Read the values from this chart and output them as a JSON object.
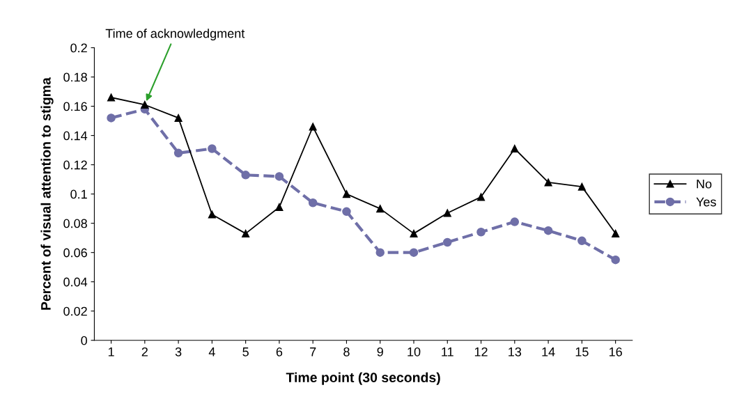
{
  "chart_data": {
    "type": "line",
    "xlabel": "Time point (30 seconds)",
    "ylabel": "Percent of visual attention to stigma",
    "categories": [
      "1",
      "2",
      "3",
      "4",
      "5",
      "6",
      "7",
      "8",
      "9",
      "10",
      "11",
      "12",
      "13",
      "14",
      "15",
      "16"
    ],
    "series": [
      {
        "name": "No",
        "color": "#000000",
        "marker": "triangle",
        "line_style": "solid",
        "values": [
          0.166,
          0.161,
          0.152,
          0.086,
          0.073,
          0.091,
          0.146,
          0.1,
          0.09,
          0.073,
          0.087,
          0.098,
          0.131,
          0.108,
          0.105,
          0.073
        ]
      },
      {
        "name": "Yes",
        "color": "#6f6fa8",
        "marker": "circle",
        "line_style": "dashed",
        "values": [
          0.152,
          0.158,
          0.128,
          0.131,
          0.113,
          0.112,
          0.094,
          0.088,
          0.06,
          0.06,
          0.067,
          0.074,
          0.081,
          0.075,
          0.068,
          0.055
        ]
      }
    ],
    "ylim": [
      0,
      0.2
    ],
    "yticks": [
      0,
      0.02,
      0.04,
      0.06,
      0.08,
      0.1,
      0.12,
      0.14,
      0.16,
      0.18,
      0.2
    ],
    "annotations": [
      {
        "text": "Time of acknowledgment",
        "x": "2",
        "y": 0.161
      }
    ],
    "legend": "right",
    "grid": false
  }
}
